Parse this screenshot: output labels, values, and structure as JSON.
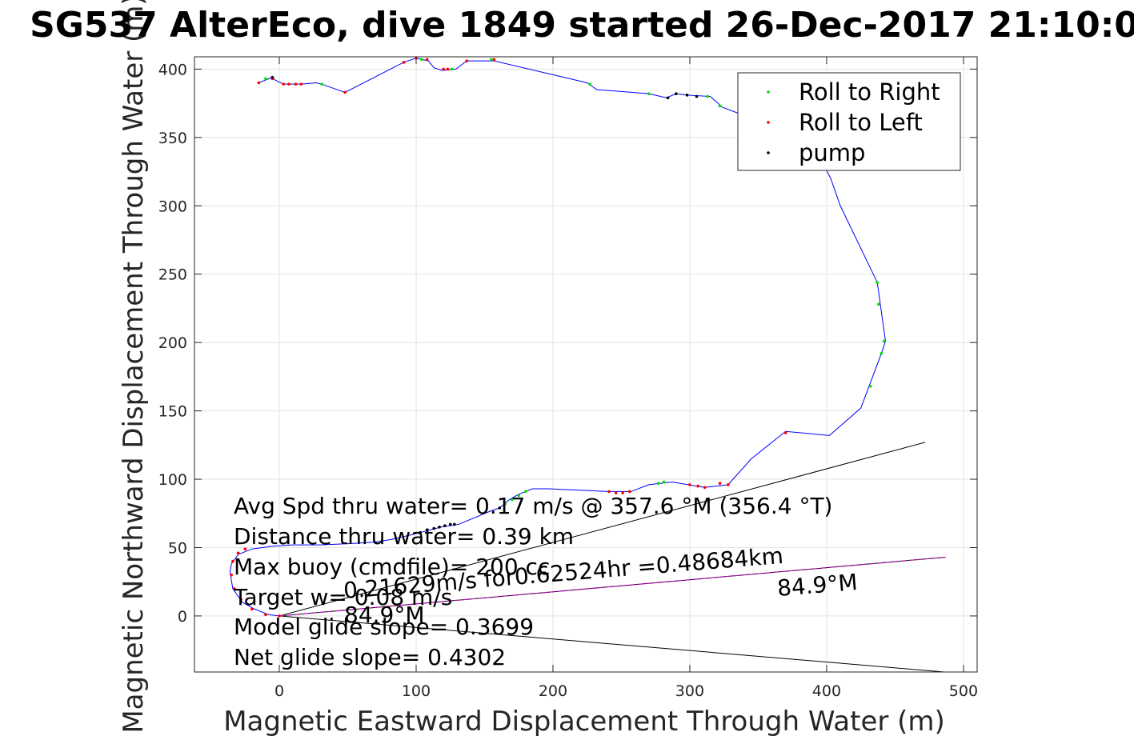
{
  "chart_data": {
    "type": "scatter",
    "title": "SG537 AlterEco, dive 1849 started 26-Dec-2017 21:10:0",
    "xlabel": "Magnetic Eastward Displacement Through Water (m)",
    "ylabel": "Magnetic Northward Displacement Through Water (m)",
    "xlim": [
      -62,
      510
    ],
    "ylim": [
      -41,
      409
    ],
    "xticks": [
      0,
      100,
      200,
      300,
      400,
      500
    ],
    "yticks": [
      0,
      50,
      100,
      150,
      200,
      250,
      300,
      350,
      400
    ],
    "grid": true,
    "legend_position": "top-right",
    "colors": {
      "track": "#0000ff",
      "roll_right": "#00dd00",
      "roll_left": "#ff0000",
      "pump": "#000000",
      "heading": "#cc00cc",
      "bounds": "#000000"
    },
    "series": [
      {
        "name": "Roll to Right",
        "marker": "dot",
        "color": "#00dd00",
        "points": [
          [
            31,
            389
          ],
          [
            227,
            389
          ],
          [
            270,
            382
          ],
          [
            313,
            380
          ],
          [
            322,
            373
          ],
          [
            437,
            244
          ],
          [
            438,
            228
          ],
          [
            442,
            201
          ],
          [
            440,
            192
          ],
          [
            432,
            168
          ],
          [
            180,
            91
          ],
          [
            175,
            88
          ],
          [
            170,
            85
          ],
          [
            165,
            82
          ],
          [
            277,
            97
          ],
          [
            281,
            98
          ],
          [
            -10,
            393
          ],
          [
            126,
            400
          ],
          [
            155,
            407
          ],
          [
            104,
            407
          ]
        ]
      },
      {
        "name": "Roll to Left",
        "marker": "dot",
        "color": "#ff0000",
        "points": [
          [
            -15,
            390
          ],
          [
            -5,
            393
          ],
          [
            3,
            389
          ],
          [
            7,
            389
          ],
          [
            12,
            389
          ],
          [
            16,
            389
          ],
          [
            48,
            383
          ],
          [
            91,
            405
          ],
          [
            100,
            408
          ],
          [
            108,
            407
          ],
          [
            120,
            400
          ],
          [
            123,
            400
          ],
          [
            137,
            406
          ],
          [
            157,
            407
          ],
          [
            241,
            91
          ],
          [
            246,
            90
          ],
          [
            251,
            90
          ],
          [
            256,
            91
          ],
          [
            300,
            96
          ],
          [
            306,
            95
          ],
          [
            311,
            94
          ],
          [
            322,
            97
          ],
          [
            328,
            96
          ],
          [
            370,
            134
          ],
          [
            -25,
            49
          ],
          [
            -30,
            46
          ],
          [
            -34,
            40
          ],
          [
            -35,
            30
          ],
          [
            -33,
            20
          ],
          [
            -28,
            12
          ],
          [
            -20,
            5
          ],
          [
            -10,
            1
          ],
          [
            0,
            0
          ]
        ]
      },
      {
        "name": "pump",
        "marker": "dot",
        "color": "#000000",
        "points": [
          [
            -5,
            394
          ],
          [
            284,
            379
          ],
          [
            290,
            382
          ],
          [
            298,
            381
          ],
          [
            305,
            380
          ],
          [
            103,
            61
          ],
          [
            108,
            63
          ],
          [
            113,
            64
          ],
          [
            117,
            65
          ],
          [
            121,
            66
          ],
          [
            125,
            67
          ],
          [
            128,
            67
          ],
          [
            161,
            79
          ]
        ]
      }
    ],
    "track": [
      [
        -15,
        390
      ],
      [
        -5,
        394
      ],
      [
        -3,
        392
      ],
      [
        3,
        389
      ],
      [
        16,
        389
      ],
      [
        27,
        390
      ],
      [
        31,
        389
      ],
      [
        48,
        383
      ],
      [
        91,
        405
      ],
      [
        100,
        408
      ],
      [
        109,
        406
      ],
      [
        113,
        401
      ],
      [
        119,
        399
      ],
      [
        129,
        400
      ],
      [
        137,
        406
      ],
      [
        157,
        406
      ],
      [
        225,
        390
      ],
      [
        232,
        385
      ],
      [
        270,
        382
      ],
      [
        283,
        379
      ],
      [
        290,
        382
      ],
      [
        298,
        381
      ],
      [
        315,
        380
      ],
      [
        324,
        372
      ],
      [
        340,
        366
      ],
      [
        360,
        359
      ],
      [
        372,
        352
      ],
      [
        390,
        345
      ],
      [
        403,
        320
      ],
      [
        410,
        300
      ],
      [
        437,
        244
      ],
      [
        443,
        201
      ],
      [
        440,
        192
      ],
      [
        425,
        152
      ],
      [
        402,
        132
      ],
      [
        370,
        135
      ],
      [
        345,
        115
      ],
      [
        328,
        96
      ],
      [
        311,
        94
      ],
      [
        305,
        95
      ],
      [
        287,
        98
      ],
      [
        270,
        96
      ],
      [
        257,
        91
      ],
      [
        240,
        91
      ],
      [
        220,
        92
      ],
      [
        197,
        93
      ],
      [
        185,
        93
      ],
      [
        175,
        89
      ],
      [
        168,
        85
      ],
      [
        161,
        79
      ],
      [
        155,
        77
      ],
      [
        131,
        67
      ],
      [
        118,
        65
      ],
      [
        103,
        61
      ],
      [
        95,
        59
      ],
      [
        82,
        56
      ],
      [
        70,
        54
      ],
      [
        53,
        53
      ],
      [
        30,
        52
      ],
      [
        10,
        52
      ],
      [
        -5,
        51
      ],
      [
        -20,
        49
      ],
      [
        -30,
        45
      ],
      [
        -35,
        38
      ],
      [
        -36,
        32
      ],
      [
        -34,
        20
      ],
      [
        -27,
        10
      ],
      [
        -18,
        5
      ],
      [
        -8,
        1
      ],
      [
        0,
        0
      ]
    ],
    "heading_line": [
      [
        0,
        0
      ],
      [
        487,
        43
      ]
    ],
    "bound_lines": [
      [
        [
          0,
          0
        ],
        [
          472,
          127
        ]
      ],
      [
        [
          0,
          0
        ],
        [
          486,
          -44
        ]
      ]
    ],
    "annotations": [
      "Avg Spd thru water=  0.17 m/s @ 357.6 °M (356.4 °T)",
      "Distance thru water=  0.39 km",
      "Max buoy (cmdfile)= 200 cc",
      "Target w= 0.08 m/s",
      "Model glide slope= 0.3699",
      "Net glide slope= 0.4302",
      "0.21629m/s for0.62524hr =0.48684km",
      "84.9°M",
      "84.9°M"
    ]
  }
}
